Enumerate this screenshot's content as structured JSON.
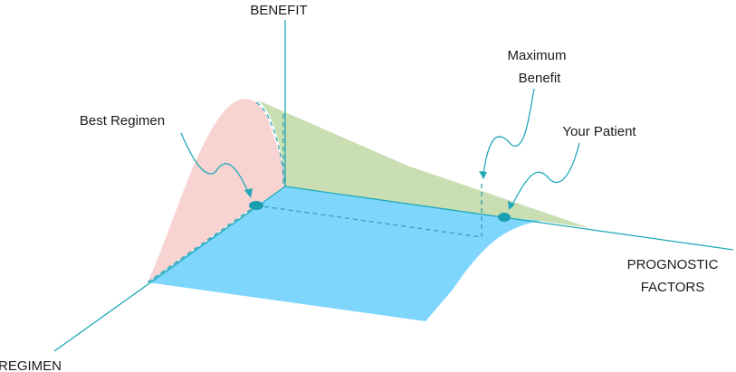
{
  "axes": {
    "benefit": "BENEFIT",
    "regimen": "REGIMEN",
    "prognostic_line1": "PROGNOSTIC",
    "prognostic_line2": "FACTORS"
  },
  "annotations": {
    "best_regimen": "Best Regimen",
    "maximum_benefit_line1": "Maximum",
    "maximum_benefit_line2": "Benefit",
    "your_patient": "Your Patient"
  },
  "colors": {
    "axis": "#22a9b8",
    "surface_pink": "#f7d4d2",
    "surface_green": "#cadeb4",
    "surface_blue": "#7fd6fd",
    "marker": "#1a9fb0"
  }
}
